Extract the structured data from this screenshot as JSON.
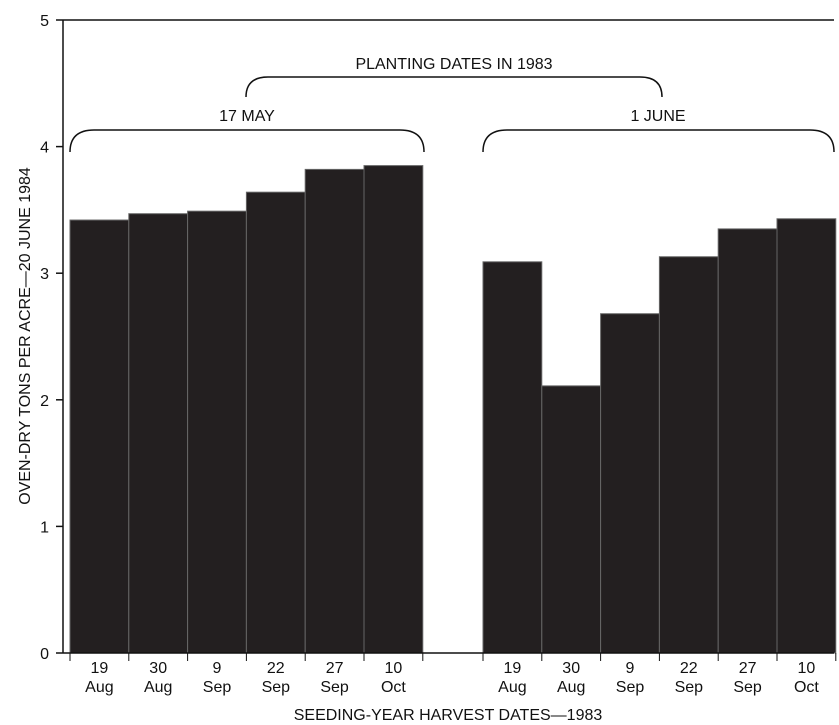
{
  "chart_data": {
    "type": "bar",
    "ylabel": "OVEN-DRY TONS PER ACRE—20 JUNE 1984",
    "xlabel": "SEEDING-YEAR HARVEST DATES—1983",
    "ylim": [
      0,
      5
    ],
    "yticks": [
      "0",
      "1",
      "2",
      "3",
      "4",
      "5"
    ],
    "grid": false,
    "annotations": {
      "top_group_label": "PLANTING DATES IN 1983"
    },
    "groups": [
      {
        "label": "17 MAY",
        "categories": [
          {
            "day": "19",
            "month": "Aug"
          },
          {
            "day": "30",
            "month": "Aug"
          },
          {
            "day": "9",
            "month": "Sep"
          },
          {
            "day": "22",
            "month": "Sep"
          },
          {
            "day": "27",
            "month": "Sep"
          },
          {
            "day": "10",
            "month": "Oct"
          }
        ],
        "values": [
          3.42,
          3.47,
          3.49,
          3.64,
          3.82,
          3.85
        ]
      },
      {
        "label": "1 JUNE",
        "categories": [
          {
            "day": "19",
            "month": "Aug"
          },
          {
            "day": "30",
            "month": "Aug"
          },
          {
            "day": "9",
            "month": "Sep"
          },
          {
            "day": "22",
            "month": "Sep"
          },
          {
            "day": "27",
            "month": "Sep"
          },
          {
            "day": "10",
            "month": "Oct"
          }
        ],
        "values": [
          3.09,
          2.11,
          2.68,
          3.13,
          3.35,
          3.43
        ]
      }
    ],
    "colors": {
      "bar": "#231f20",
      "bar_separator": "#666666",
      "axis": "#111111"
    }
  }
}
